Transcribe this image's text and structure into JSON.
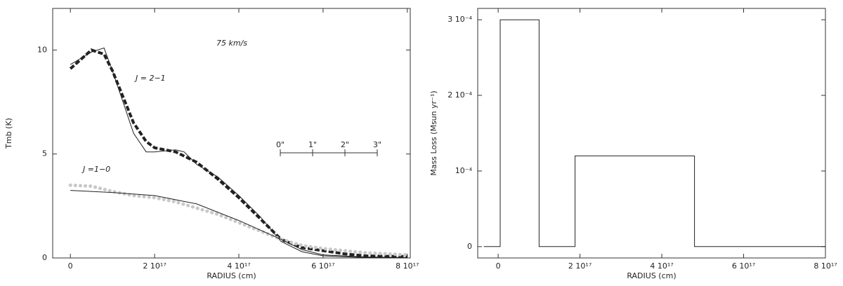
{
  "chart_data": [
    {
      "type": "line",
      "y_label": "Tmb (K)",
      "x_label": "RADIUS (cm)",
      "xlim": [
        -4.2e+16,
        8.07e+17
      ],
      "ylim": [
        0,
        12
      ],
      "xticks": [
        0,
        {
          "value": 2e+17,
          "label": "2 10¹⁷"
        },
        {
          "value": 4e+17,
          "label": "4 10¹⁷"
        },
        {
          "value": 6e+17,
          "label": "6 10¹⁷"
        },
        {
          "value": 8e+17,
          "label": "8 10¹⁷"
        }
      ],
      "yticks": [
        0,
        5,
        10
      ],
      "annotations": [
        "75 km/s",
        "J = 2−1",
        "J =1−0"
      ],
      "scale_bar_labels": [
        "0\"",
        "1\"",
        "2\"",
        "3\""
      ],
      "series": [
        {
          "color": "#222",
          "style": "dashed",
          "x": [
            0,
            5e+16,
            8e+16,
            1e+17,
            1.3e+17,
            1.5e+17,
            1.8e+17,
            2e+17,
            2.5e+17,
            3e+17,
            3.5e+17,
            4e+17,
            4.5e+17,
            5e+17,
            5.5e+17,
            6e+17,
            6.5e+17,
            7e+17,
            7.5e+17,
            8e+17
          ],
          "values": [
            9.1,
            10.0,
            9.8,
            9.0,
            7.5,
            6.5,
            5.6,
            5.3,
            5.1,
            4.6,
            3.8,
            2.9,
            1.9,
            0.9,
            0.5,
            0.35,
            0.2,
            0.1,
            0.08,
            0.07
          ]
        },
        {
          "color": "#222",
          "style": "solid",
          "x": [
            0,
            5e+16,
            8e+16,
            1e+17,
            1.5e+17,
            1.8e+17,
            2e+17,
            2.5e+17,
            2.7e+17,
            3e+17,
            3.5e+17,
            4e+17,
            4.5e+17,
            5e+17,
            5.5e+17,
            6e+17,
            7e+17,
            8e+17
          ],
          "values": [
            9.3,
            9.9,
            10.1,
            9.0,
            6.0,
            5.1,
            5.1,
            5.2,
            5.1,
            4.5,
            3.9,
            3.0,
            2.0,
            0.8,
            0.3,
            0.1,
            0.02,
            0
          ]
        },
        {
          "color": "#c8c8c8",
          "style": "dotted",
          "x": [
            0,
            5e+16,
            1e+17,
            1.5e+17,
            2e+17,
            2.5e+17,
            3e+17,
            3.5e+17,
            4e+17,
            4.5e+17,
            5e+17,
            5.5e+17,
            6e+17,
            6.5e+17,
            7e+17,
            7.5e+17,
            8e+17
          ],
          "values": [
            3.5,
            3.45,
            3.2,
            3.0,
            2.9,
            2.7,
            2.4,
            2.1,
            1.7,
            1.3,
            0.9,
            0.6,
            0.45,
            0.35,
            0.25,
            0.2,
            0.15
          ]
        },
        {
          "color": "#222",
          "style": "solid",
          "x": [
            0,
            1e+17,
            2e+17,
            3e+17,
            4e+17,
            5e+17,
            5.5e+17,
            6e+17,
            7e+17,
            8e+17
          ],
          "values": [
            3.25,
            3.15,
            3.0,
            2.6,
            1.8,
            0.9,
            0.4,
            0.15,
            0.05,
            0.02
          ]
        }
      ]
    },
    {
      "type": "line",
      "y_label": "Mass Loss (Msun yr⁻¹)",
      "x_label": "RADIUS (cm)",
      "xlim": [
        -5e+16,
        8e+17
      ],
      "ylim": [
        -1.5e-05,
        0.000315
      ],
      "xticks": [
        0,
        {
          "value": 2e+17,
          "label": "2 10¹⁷"
        },
        {
          "value": 4e+17,
          "label": "4 10¹⁷"
        },
        {
          "value": 6e+17,
          "label": "6 10¹⁷"
        },
        {
          "value": 8e+17,
          "label": "8 10¹⁷"
        }
      ],
      "yticks": [
        0,
        {
          "value": 0.0001,
          "label": "10⁻⁴"
        },
        {
          "value": 0.0002,
          "label": "2 10⁻⁴"
        },
        {
          "value": 0.0003,
          "label": "3 10⁻⁴"
        }
      ],
      "series": [
        {
          "color": "#222",
          "style": "solid",
          "x": [
            -3.5e+16,
            5000000000000000.0,
            5000000000000000.0,
            1e+17,
            1e+17,
            1.88e+17,
            1.88e+17,
            4.8e+17,
            4.8e+17,
            8e+17
          ],
          "values": [
            0,
            0,
            0.0003,
            0.0003,
            0,
            0,
            0.00012,
            0.00012,
            0,
            0
          ]
        }
      ]
    }
  ]
}
